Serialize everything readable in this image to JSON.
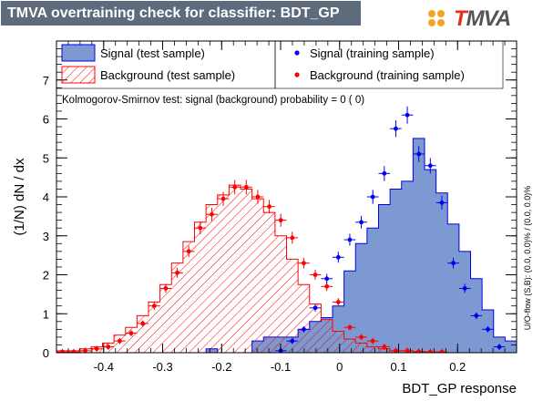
{
  "header": {
    "title": "TMVA overtraining check for classifier: BDT_GP",
    "logo_text_t": "T",
    "logo_text_rest": "MVA"
  },
  "legend": {
    "signal_test": "Signal (test sample)",
    "background_test": "Background (test sample)",
    "signal_train": "Signal (training sample)",
    "background_train": "Background (training sample)"
  },
  "ks_text": "Kolmogorov-Smirnov test: signal (background) probability =     0 (     0)",
  "side_text": "U/O-flow (S,B): (0.0, 0.0)% / (0.0, 0.0)%",
  "colors": {
    "signal_fill": "#7d99d1",
    "signal_line": "#0000ee",
    "background_line": "#ff0000",
    "title_bg": "#5d6b7d"
  },
  "chart_data": {
    "type": "histogram",
    "xlabel": "BDT_GP response",
    "ylabel": "(1/N) dN / dx",
    "xlim": [
      -0.48,
      0.3
    ],
    "ylim": [
      0,
      8
    ],
    "x_ticks": [
      -0.4,
      -0.3,
      -0.2,
      -0.1,
      0,
      0.1,
      0.2
    ],
    "x_tick_labels": [
      "-0.4",
      "-0.3",
      "-0.2",
      "-0.1",
      "0",
      "0.1",
      "0.2"
    ],
    "y_ticks": [
      0,
      1,
      2,
      3,
      4,
      5,
      6,
      7
    ],
    "bins": {
      "start": -0.48,
      "width": 0.0195,
      "count": 40
    },
    "series": [
      {
        "name": "Signal (test sample)",
        "style": "filled-histogram",
        "values": [
          0,
          0,
          0,
          0,
          0,
          0,
          0,
          0,
          0,
          0,
          0,
          0,
          0,
          0.1,
          0,
          0,
          0,
          0.3,
          0.4,
          0.4,
          0.4,
          0.6,
          0.8,
          0.9,
          1.2,
          2.1,
          2.8,
          3.2,
          3.8,
          4.2,
          4.4,
          5.5,
          4.7,
          4.1,
          3.3,
          2.6,
          1.9,
          1.1,
          0.4,
          0.3
        ]
      },
      {
        "name": "Background (test sample)",
        "style": "hatched-histogram",
        "values": [
          0.05,
          0.05,
          0.1,
          0.15,
          0.25,
          0.45,
          0.65,
          0.95,
          1.3,
          1.75,
          2.3,
          2.85,
          3.35,
          3.8,
          4.05,
          4.3,
          4.2,
          3.95,
          3.6,
          3.0,
          2.4,
          1.75,
          1.25,
          0.85,
          0.55,
          0.35,
          0.25,
          0.15,
          0.1,
          0.05,
          0.05,
          0.02,
          0.02,
          0,
          0,
          0,
          0,
          0,
          0,
          0
        ]
      },
      {
        "name": "Signal (training sample)",
        "style": "markers",
        "values": [
          0,
          0,
          0,
          0,
          0,
          0,
          0,
          0,
          0,
          0,
          0,
          0,
          0,
          0,
          0,
          0,
          0,
          0,
          0,
          0.05,
          0.3,
          0.6,
          1.15,
          1.9,
          2.45,
          2.9,
          3.35,
          4.0,
          4.6,
          5.75,
          6.1,
          5.1,
          4.8,
          3.85,
          2.3,
          1.65,
          0.95,
          0.6,
          0.15,
          0
        ]
      },
      {
        "name": "Background (training sample)",
        "style": "markers",
        "values": [
          0.02,
          0.02,
          0.05,
          0.1,
          0.15,
          0.3,
          0.5,
          0.75,
          1.2,
          1.65,
          2.05,
          2.6,
          3.2,
          3.55,
          3.95,
          4.25,
          4.25,
          4.0,
          3.75,
          3.4,
          2.95,
          2.3,
          2.0,
          1.7,
          1.3,
          0.65,
          0.4,
          0.3,
          0.15,
          0.05,
          0.05,
          0.03,
          0.02,
          0.02,
          0,
          0,
          0,
          0,
          0,
          0
        ]
      }
    ]
  }
}
